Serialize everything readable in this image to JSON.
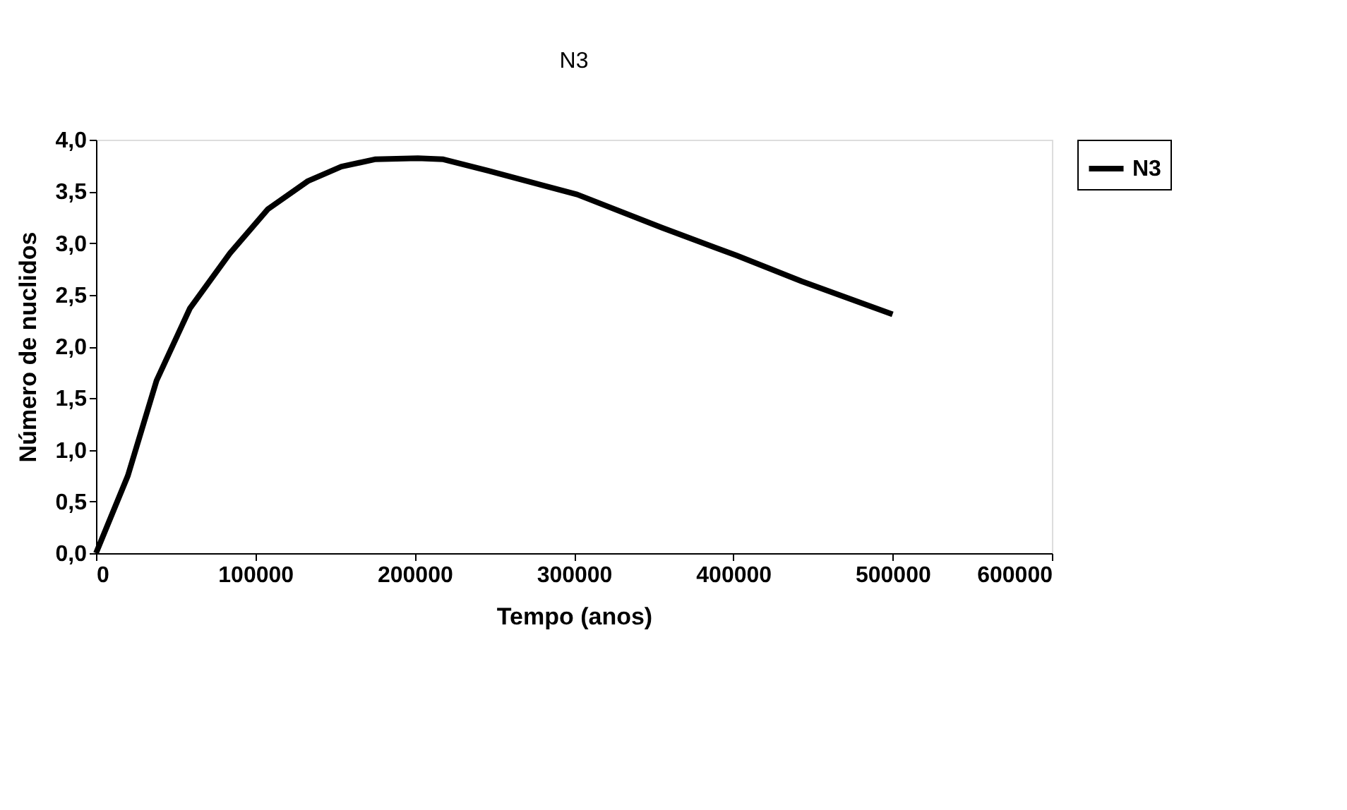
{
  "chart_data": {
    "type": "line",
    "title": "N3",
    "xlabel": "Tempo (anos)",
    "ylabel": "Número de nuclidos",
    "x": [
      0,
      20000,
      38000,
      59000,
      84000,
      108000,
      133000,
      154000,
      175000,
      202000,
      218000,
      246000,
      302000,
      355000,
      402000,
      443000,
      500000
    ],
    "series": [
      {
        "name": "N3",
        "color": "#000000",
        "values": [
          0,
          0.75,
          1.67,
          2.37,
          2.9,
          3.33,
          3.6,
          3.74,
          3.81,
          3.82,
          3.81,
          3.7,
          3.47,
          3.15,
          2.88,
          2.63,
          2.31
        ]
      }
    ],
    "xlim": [
      0,
      600000
    ],
    "xticks": [
      0,
      100000,
      200000,
      300000,
      400000,
      500000,
      600000
    ],
    "ylim": [
      0,
      4
    ],
    "yticks": [
      {
        "value": 0,
        "label": "0,0"
      },
      {
        "value": 0.5,
        "label": "0,5"
      },
      {
        "value": 1,
        "label": "1,0"
      },
      {
        "value": 1.5,
        "label": "1,5"
      },
      {
        "value": 2,
        "label": "2,0"
      },
      {
        "value": 2.5,
        "label": "2,5"
      },
      {
        "value": 3,
        "label": "3,0"
      },
      {
        "value": 3.5,
        "label": "3,5"
      },
      {
        "value": 4,
        "label": "4,0"
      }
    ],
    "grid": false,
    "legend": "right",
    "marker": "none",
    "line_style": "solid"
  }
}
